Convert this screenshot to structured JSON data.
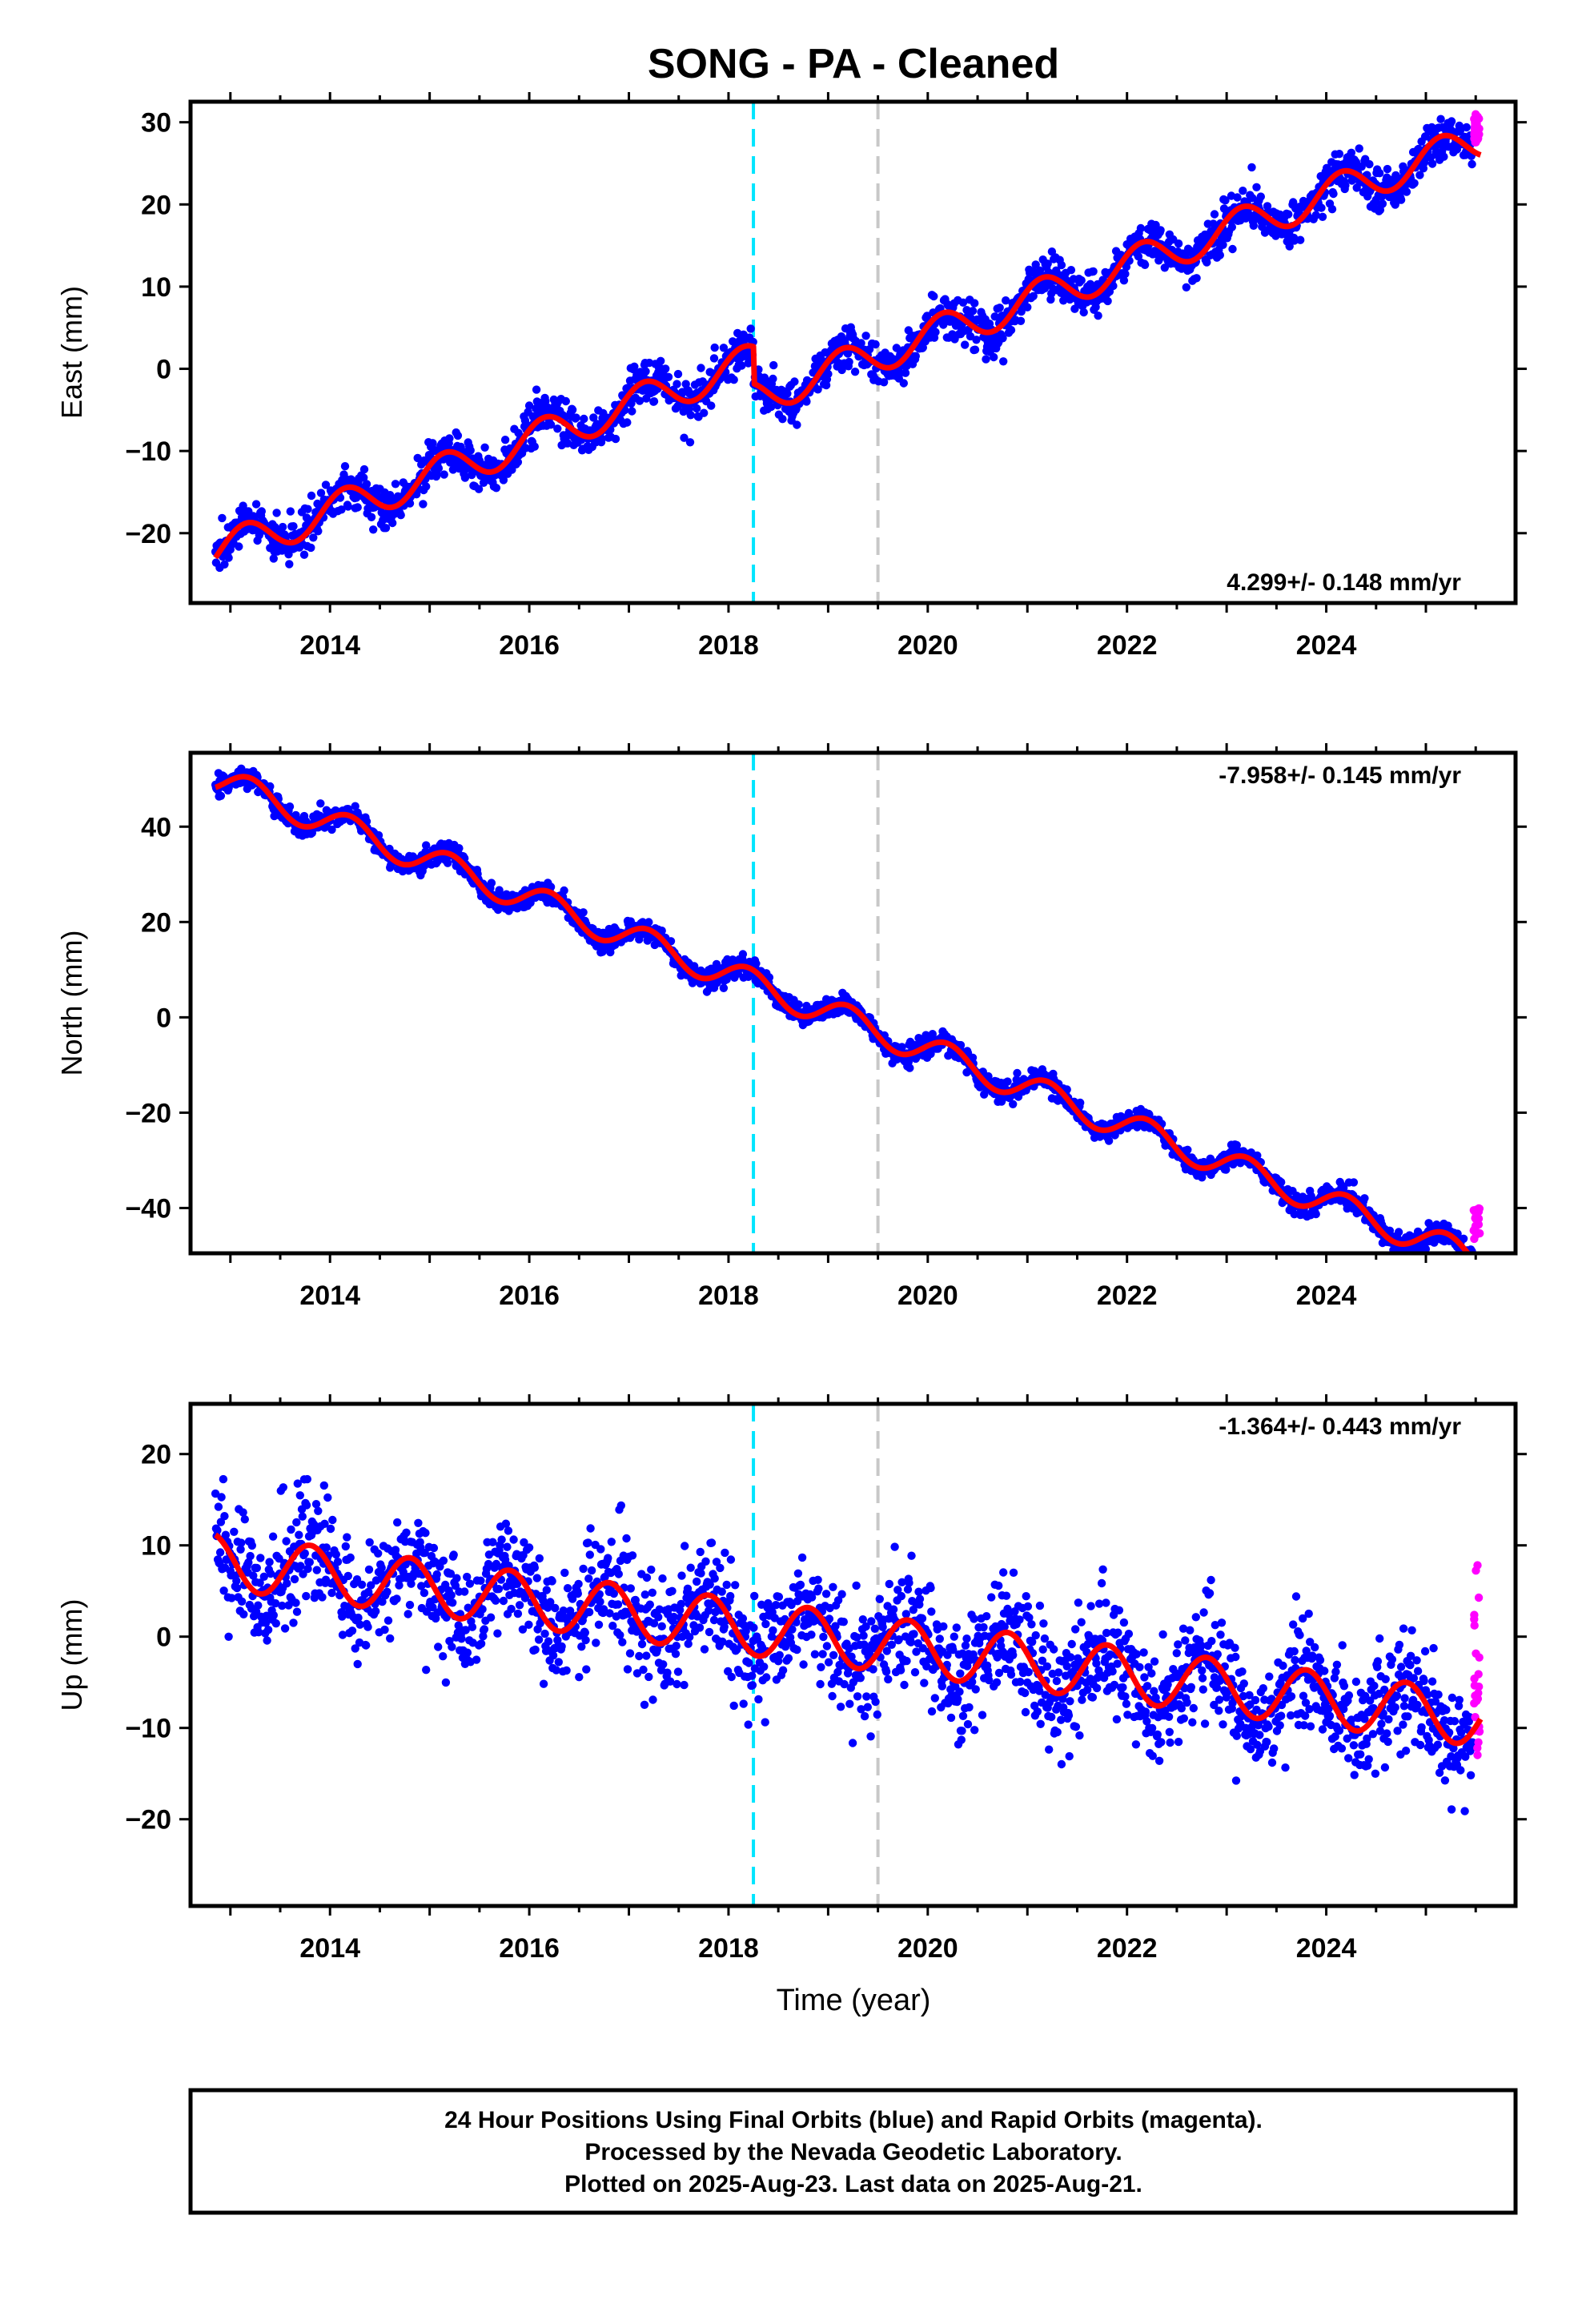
{
  "chart_data": {
    "type": "scatter",
    "title": "SONG  - PA - Cleaned",
    "xlabel": "Time (year)",
    "xlim": [
      2012.6,
      2025.9
    ],
    "x_ticks": [
      2014,
      2016,
      2018,
      2020,
      2022,
      2024
    ],
    "vertical_lines": [
      {
        "x": 2018.25,
        "color": "#00e5ff",
        "style": "dashed"
      },
      {
        "x": 2019.5,
        "color": "#c8c8c8",
        "style": "dashed"
      }
    ],
    "colors": {
      "final": "#0000ff",
      "rapid": "#ff00ff",
      "model": "#ff0000",
      "frame": "#000000"
    },
    "legend_entries": [
      "Final Orbits (blue)",
      "Rapid Orbits (magenta)"
    ],
    "grid": false,
    "panels": [
      {
        "name": "East",
        "ylabel": "East (mm)",
        "ylim": [
          -28.5,
          32.5
        ],
        "y_ticks": [
          -20,
          -10,
          0,
          10,
          20,
          30
        ],
        "rate_label": "4.299+/- 0.148 mm/yr",
        "rate_position": "bottom-right",
        "start": 2012.85,
        "end": 2025.55,
        "model": {
          "offset_at_start": -22.3,
          "rate": 4.299,
          "amplitude": 2.2,
          "phase": 2012.9,
          "steps": [
            {
              "x": 2018.25,
              "delta": -4.5
            },
            {
              "x": 2019.5,
              "delta": 0
            }
          ]
        },
        "scatter_sd": 1.3,
        "rapid_range": [
          26.5,
          31.0
        ]
      },
      {
        "name": "North",
        "ylabel": "North (mm)",
        "ylim": [
          -49.5,
          55.5
        ],
        "y_ticks": [
          -40,
          -20,
          0,
          20,
          40
        ],
        "rate_label": "-7.958+/- 0.145 mm/yr",
        "rate_position": "top-right",
        "start": 2012.85,
        "end": 2025.55,
        "model": {
          "offset_at_start": 50.0,
          "rate": -7.958,
          "amplitude": 3.0,
          "phase": 2012.95,
          "steps": [
            {
              "x": 2018.25,
              "delta": 0
            },
            {
              "x": 2019.5,
              "delta": 0
            }
          ]
        },
        "scatter_sd": 1.1,
        "rapid_range": [
          -46.5,
          -40.0
        ]
      },
      {
        "name": "Up",
        "ylabel": "Up (mm)",
        "ylim": [
          -29.5,
          25.5
        ],
        "y_ticks": [
          -20,
          -10,
          0,
          10,
          20
        ],
        "rate_label": "-1.364+/- 0.443 mm/yr",
        "rate_position": "top-right",
        "start": 2012.85,
        "end": 2025.55,
        "model": {
          "offset_at_start": 8.3,
          "rate": -1.364,
          "amplitude": 3.0,
          "phase": 2013.55,
          "steps": [
            {
              "x": 2018.25,
              "delta": 0
            },
            {
              "x": 2019.5,
              "delta": 0
            }
          ]
        },
        "scatter_sd": 3.1,
        "rapid_range": [
          -13.0,
          8.0
        ]
      }
    ],
    "footer_lines": [
      "24 Hour Positions Using Final Orbits (blue) and Rapid Orbits (magenta).",
      "Processed by the Nevada Geodetic Laboratory.",
      "Plotted on 2025-Aug-23. Last data on 2025-Aug-21."
    ]
  }
}
